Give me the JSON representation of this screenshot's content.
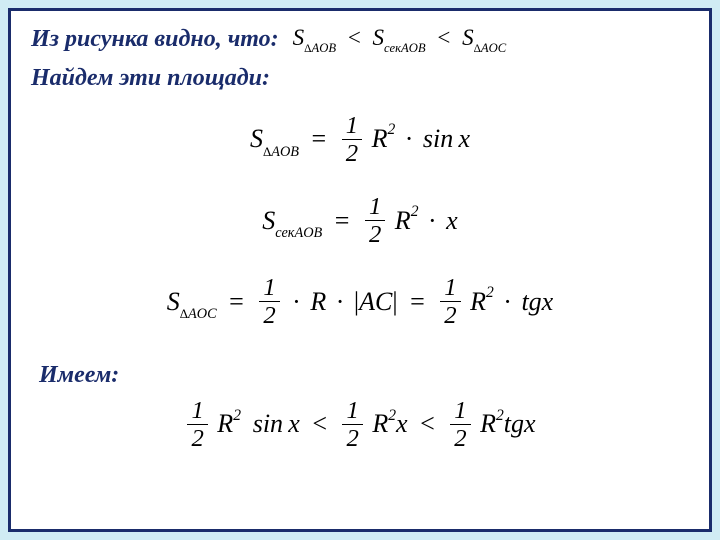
{
  "frame": {
    "border_color": "#1a2c6b",
    "background_color": "#ffffff",
    "outer_background": "#d0ecf4",
    "prose_color": "#1a2c6b",
    "math_color": "#000000"
  },
  "text": {
    "line1_prefix": "Из рисунка видно, что:",
    "line2": "Найдем эти площади:",
    "line_haveit": "Имеем:"
  },
  "ineq1": {
    "s": "S",
    "sub1_tri": "Δ",
    "sub1_rest": "AOB",
    "sub2": "секAOB",
    "sub3_tri": "Δ",
    "sub3_rest": "AOC",
    "lt": "<"
  },
  "f1": {
    "s": "S",
    "sub_tri": "Δ",
    "sub_rest": "AOB",
    "eq": "=",
    "half_num": "1",
    "half_den": "2",
    "R": "R",
    "sup2": "2",
    "dot": "·",
    "sin": "sin",
    "x": "x"
  },
  "f2": {
    "s": "S",
    "sub": "секAOB",
    "eq": "=",
    "half_num": "1",
    "half_den": "2",
    "R": "R",
    "sup2": "2",
    "dot": "·",
    "x": "x"
  },
  "f3": {
    "s": "S",
    "sub_tri": "Δ",
    "sub_rest": "AOC",
    "eq": "=",
    "half_num": "1",
    "half_den": "2",
    "dot": "·",
    "R": "R",
    "bar_l": "|",
    "AC": "AC",
    "bar_r": "|",
    "sup2": "2",
    "tgx": "tgx"
  },
  "ineq2": {
    "half_num": "1",
    "half_den": "2",
    "R": "R",
    "sup2": "2",
    "sin": "sin",
    "x": "x",
    "lt": "<",
    "tgx": "tgx"
  }
}
